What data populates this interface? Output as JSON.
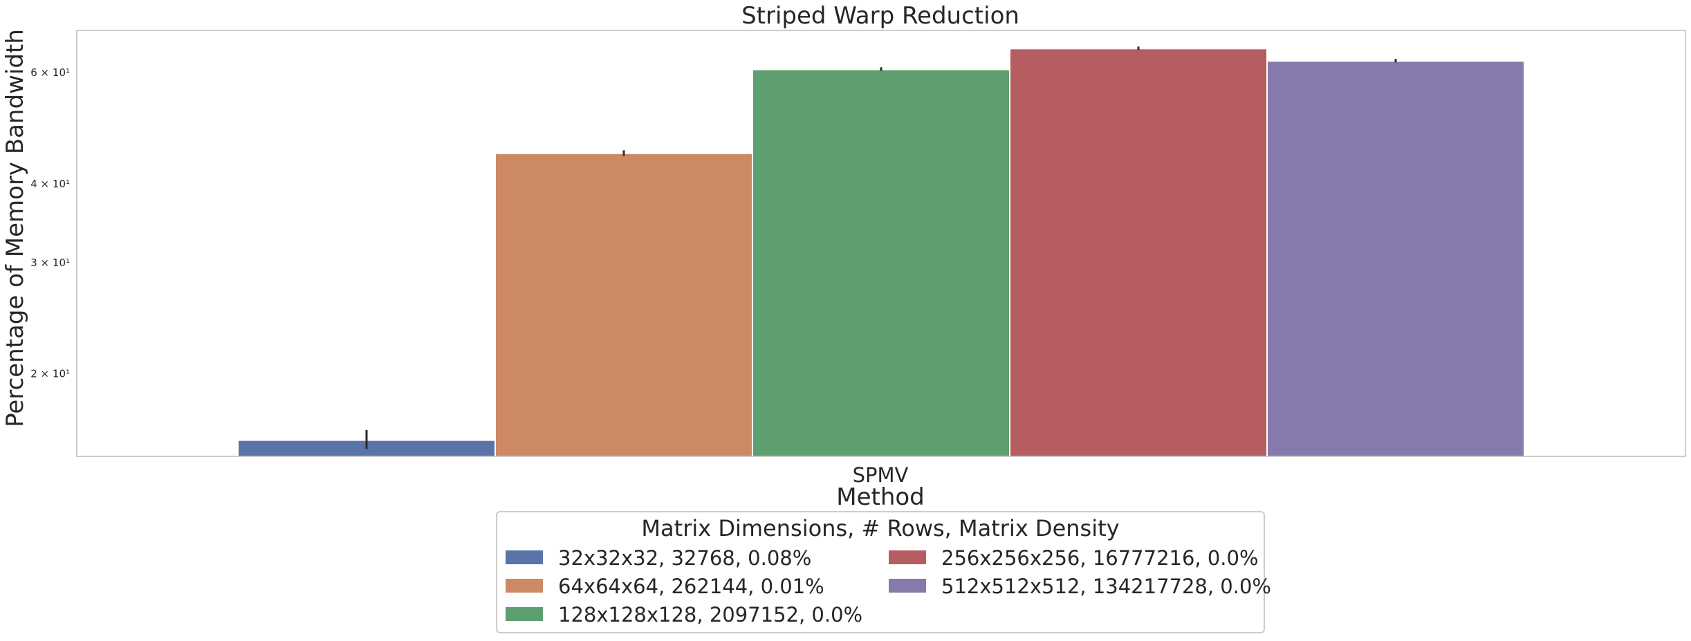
{
  "chart_data": {
    "type": "bar",
    "title": "Striped Warp Reduction",
    "xlabel": "Method",
    "ylabel": "Percentage of Memory Bandwidth",
    "yscale": "log",
    "ylim": [
      14.8,
      70
    ],
    "yticks": [
      {
        "value": 20,
        "label": "2 × 10¹"
      },
      {
        "value": 30,
        "label": "3 × 10¹"
      },
      {
        "value": 40,
        "label": "4 × 10¹"
      },
      {
        "value": 60,
        "label": "6 × 10¹"
      }
    ],
    "categories": [
      "SPMV"
    ],
    "grid": false,
    "legend": {
      "title": "Matrix Dimensions, # Rows, Matrix Density",
      "placement": "bottom-center",
      "columns": 2
    },
    "series": [
      {
        "name": "32x32x32, 32768, 0.08%",
        "color": "#5874a8",
        "values": [
          15.7
        ],
        "err_low": [
          15.2
        ],
        "err_high": [
          16.3
        ]
      },
      {
        "name": "64x64x64, 262144, 0.01%",
        "color": "#cc8964",
        "values": [
          44.7
        ],
        "err_low": [
          44.3
        ],
        "err_high": [
          45.2
        ]
      },
      {
        "name": "128x128x128, 2097152, 0.0%",
        "color": "#5f9e6e",
        "values": [
          60.7
        ],
        "err_low": [
          60.4
        ],
        "err_high": [
          61.2
        ]
      },
      {
        "name": "256x256x256, 16777216, 0.0%",
        "color": "#b55d60",
        "values": [
          65.5
        ],
        "err_low": [
          65.2
        ],
        "err_high": [
          66.0
        ]
      },
      {
        "name": "512x512x512, 134217728, 0.0%",
        "color": "#857aab",
        "values": [
          62.6
        ],
        "err_low": [
          62.3
        ],
        "err_high": [
          63.1
        ]
      }
    ]
  }
}
